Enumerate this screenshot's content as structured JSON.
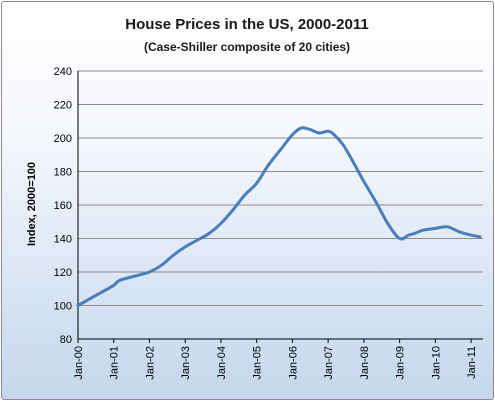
{
  "chart_data": {
    "type": "line",
    "title": "House Prices in the US, 2000-2011",
    "subtitle": "(Case-Shiller composite of 20 cities)",
    "xlabel": "",
    "ylabel": "Index, 2000=100",
    "ylim": [
      80,
      240
    ],
    "yticks": [
      "80",
      "100",
      "120",
      "140",
      "160",
      "180",
      "200",
      "220",
      "240"
    ],
    "xticks": [
      "Jan-00",
      "Jan-01",
      "Jan-02",
      "Jan-03",
      "Jan-04",
      "Jan-05",
      "Jan-06",
      "Jan-07",
      "Jan-08",
      "Jan-09",
      "Jan-10",
      "Jan-11"
    ],
    "x_start": "2000-01",
    "x_end": "2011-05",
    "grid": "horizontal",
    "legend": "none",
    "colors": {
      "line": "#4a7ebb",
      "grid": "#8c8c8c",
      "frame_bottom": "#c5d6ee"
    },
    "series": [
      {
        "name": "",
        "x": [
          "2000-01",
          "2000-05",
          "2000-09",
          "2001-01",
          "2001-03",
          "2001-09",
          "2002-01",
          "2002-05",
          "2002-09",
          "2003-01",
          "2003-05",
          "2003-09",
          "2004-01",
          "2004-05",
          "2004-09",
          "2005-01",
          "2005-05",
          "2005-09",
          "2006-01",
          "2006-04",
          "2006-07",
          "2006-10",
          "2007-01",
          "2007-03",
          "2007-06",
          "2007-09",
          "2008-01",
          "2008-05",
          "2008-09",
          "2009-01",
          "2009-04",
          "2009-06",
          "2009-09",
          "2010-01",
          "2010-05",
          "2010-09",
          "2011-01",
          "2011-04"
        ],
        "values": [
          100,
          104,
          108,
          112,
          115,
          118,
          120,
          124,
          130,
          135,
          139,
          143,
          149,
          157,
          166,
          173,
          184,
          193,
          202,
          206,
          205,
          203,
          204,
          202,
          196,
          187,
          174,
          162,
          149,
          140,
          142,
          143,
          145,
          146,
          147,
          144,
          142,
          141
        ]
      }
    ]
  }
}
